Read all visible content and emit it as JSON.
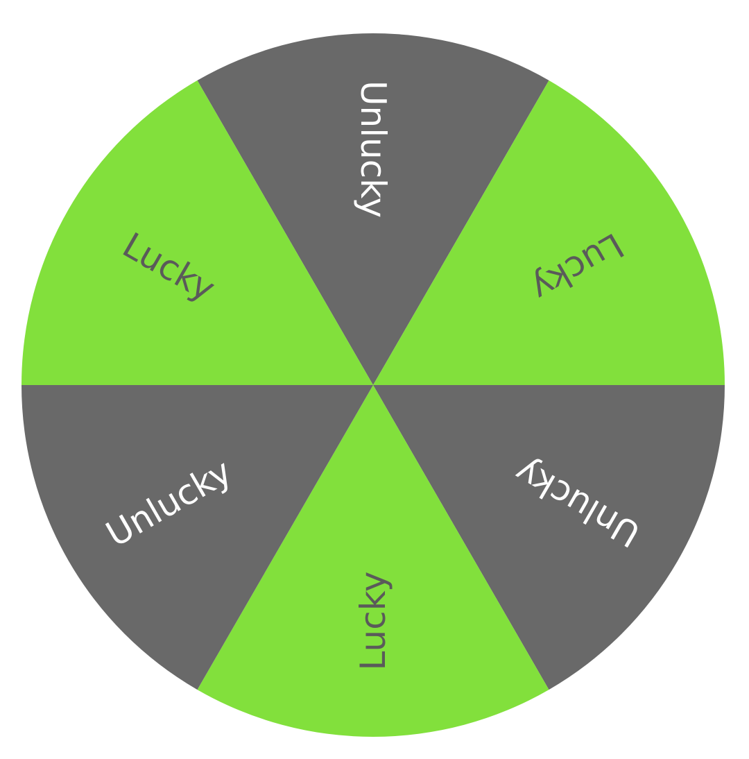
{
  "wheel": {
    "segments": [
      {
        "label": "Unlucky",
        "fill": "#696969",
        "text_color": "#ffffff"
      },
      {
        "label": "Lucky",
        "fill": "#82e03c",
        "text_color": "#5a5a5a"
      },
      {
        "label": "Unlucky",
        "fill": "#696969",
        "text_color": "#ffffff"
      },
      {
        "label": "Lucky",
        "fill": "#82e03c",
        "text_color": "#5a5a5a"
      },
      {
        "label": "Unlucky",
        "fill": "#696969",
        "text_color": "#ffffff"
      },
      {
        "label": "Lucky",
        "fill": "#82e03c",
        "text_color": "#5a5a5a"
      }
    ]
  }
}
